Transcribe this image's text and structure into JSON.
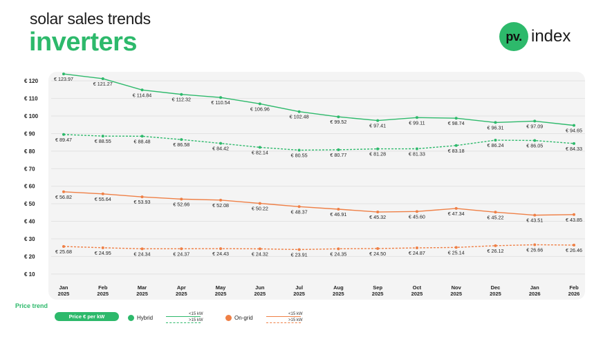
{
  "header": {
    "subtitle": "solar sales trends",
    "title": "inverters"
  },
  "logo": {
    "badge": "pv.",
    "text": "index"
  },
  "colors": {
    "green": "#2db96b",
    "orange": "#ef7f45"
  },
  "chart_data": {
    "type": "line",
    "categories": [
      [
        "Jan",
        "2025"
      ],
      [
        "Feb",
        "2025"
      ],
      [
        "Mar",
        "2025"
      ],
      [
        "Apr",
        "2025"
      ],
      [
        "May",
        "2025"
      ],
      [
        "Jun",
        "2025"
      ],
      [
        "Jul",
        "2025"
      ],
      [
        "Aug",
        "2025"
      ],
      [
        "Sep",
        "2025"
      ],
      [
        "Oct",
        "2025"
      ],
      [
        "Nov",
        "2025"
      ],
      [
        "Dec",
        "2025"
      ],
      [
        "Jan",
        "2026"
      ],
      [
        "Feb",
        "2026"
      ]
    ],
    "yticks": [
      "€ 10",
      "€ 20",
      "€ 30",
      "€ 40",
      "€ 50",
      "€ 60",
      "€ 70",
      "€ 80",
      "€ 90",
      "€ 100",
      "€ 110",
      "€ 120"
    ],
    "ytick_values": [
      10,
      20,
      30,
      40,
      50,
      60,
      70,
      80,
      90,
      100,
      110,
      120
    ],
    "ylim": [
      6,
      124
    ],
    "series": [
      {
        "name": "Hybrid <15 kW",
        "color": "#2db96b",
        "dashed": false,
        "values": [
          123.97,
          121.27,
          114.84,
          112.32,
          110.54,
          106.96,
          102.48,
          99.52,
          97.41,
          99.11,
          98.74,
          96.31,
          97.09,
          94.65
        ],
        "labels": [
          "€ 123.97",
          "€ 121.27",
          "€ 114.84",
          "€ 112.32",
          "€ 110.54",
          "€ 106.96",
          "€ 102.48",
          "€ 99.52",
          "€ 97.41",
          "€ 99.11",
          "€ 98.74",
          "€ 96.31",
          "€ 97.09",
          "€ 94.65"
        ]
      },
      {
        "name": "Hybrid >15 kW",
        "color": "#2db96b",
        "dashed": true,
        "values": [
          89.47,
          88.55,
          88.48,
          86.58,
          84.42,
          82.14,
          80.55,
          80.77,
          81.28,
          81.33,
          83.18,
          86.24,
          86.05,
          84.33
        ],
        "labels": [
          "€ 89.47",
          "€ 88.55",
          "€ 88.48",
          "€ 86.58",
          "€ 84.42",
          "€ 82.14",
          "€ 80.55",
          "€ 80.77",
          "€ 81.28",
          "€ 81.33",
          "€ 83.18",
          "€ 86.24",
          "€ 86.05",
          "€ 84.33"
        ]
      },
      {
        "name": "On-grid <15 kW",
        "color": "#ef7f45",
        "dashed": false,
        "values": [
          56.82,
          55.64,
          53.93,
          52.66,
          52.08,
          50.22,
          48.37,
          46.91,
          45.32,
          45.6,
          47.34,
          45.22,
          43.51,
          43.85
        ],
        "labels": [
          "€ 56.82",
          "€ 55.64",
          "€ 53.93",
          "€ 52.66",
          "€ 52.08",
          "€ 50.22",
          "€ 48.37",
          "€ 46.91",
          "€ 45.32",
          "€ 45.60",
          "€ 47.34",
          "€ 45.22",
          "€ 43.51",
          "€ 43.85"
        ]
      },
      {
        "name": "On-grid >15 kW",
        "color": "#ef7f45",
        "dashed": true,
        "values": [
          25.68,
          24.95,
          24.34,
          24.37,
          24.43,
          24.32,
          23.91,
          24.35,
          24.5,
          24.87,
          25.14,
          26.12,
          26.66,
          26.46
        ],
        "labels": [
          "€ 25.68",
          "€ 24.95",
          "€ 24.34",
          "€ 24.37",
          "€ 24.43",
          "€ 24.32",
          "€ 23.91",
          "€ 24.35",
          "€ 24.50",
          "€ 24.87",
          "€ 25.14",
          "€ 26.12",
          "€ 26.66",
          "€ 26.46"
        ]
      }
    ]
  },
  "legend": {
    "title": "Price trend",
    "pill": "Price € per kW",
    "hybrid": "Hybrid",
    "ongrid": "On-grid",
    "lt15": "<15 kW",
    "gt15": ">15 kW"
  }
}
